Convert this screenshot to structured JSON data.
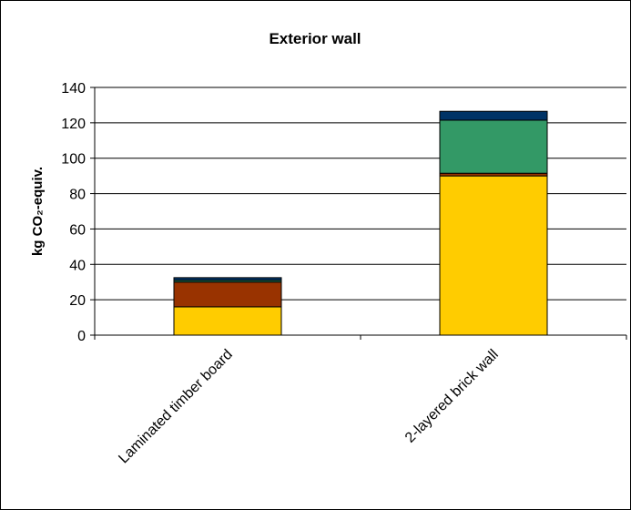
{
  "chart_data": {
    "type": "bar",
    "stacked": true,
    "title": "Exterior wall",
    "xlabel": "",
    "ylabel": "kg CO₂-equiv.",
    "ylim": [
      0,
      140
    ],
    "yticks": [
      "0",
      "20",
      "40",
      "60",
      "80",
      "100",
      "120",
      "140"
    ],
    "grid": true,
    "legend": "none",
    "categories": [
      "Laminated timber board",
      "2-layered brick wall"
    ],
    "series": [
      {
        "color": "#FFCC00",
        "values": [
          16,
          90
        ]
      },
      {
        "color": "#993300",
        "values": [
          14,
          1.5
        ]
      },
      {
        "color": "#339966",
        "values": [
          1,
          30
        ]
      },
      {
        "color": "#003366",
        "values": [
          1.5,
          5
        ]
      }
    ]
  }
}
